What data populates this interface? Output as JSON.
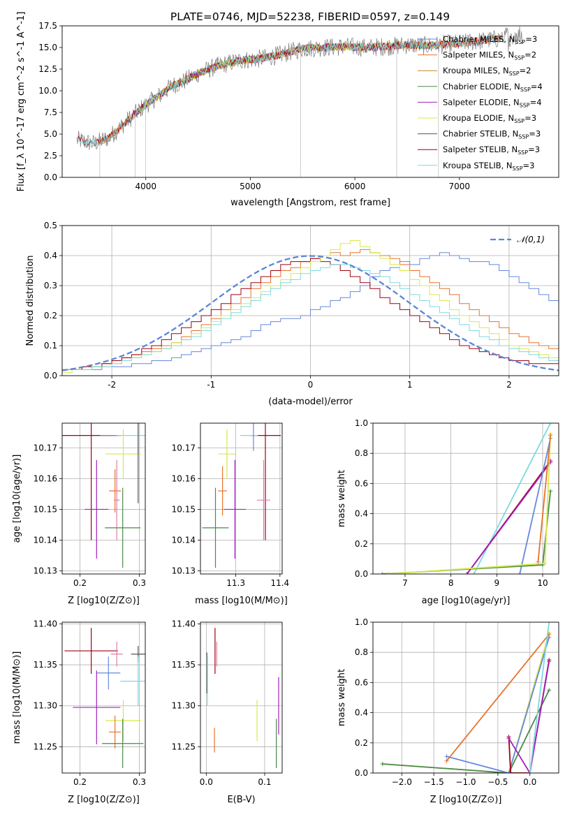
{
  "figure": {
    "title": "PLATE=0746, MJD=52238, FIBERID=0597, z=0.149"
  },
  "colors": {
    "Chabrier MILES": "#6688dd",
    "Salpeter MILES": "#e8732a",
    "Kroupa MILES": "#c8861e",
    "Chabrier ELODIE": "#4a8a4a",
    "Salpeter ELODIE": "#a020c0",
    "Kroupa ELODIE": "#d8e84a",
    "Chabrier STELIB": "#555555",
    "Salpeter STELIB": "#a00010",
    "Kroupa STELIB": "#7fd8e0",
    "Salpeter ELODIE pink": "#e07fa0",
    "gaussian": "#5b86d6"
  },
  "chart_data": [
    {
      "id": "spectrum",
      "type": "line",
      "title": "PLATE=0746, MJD=52238, FIBERID=0597, z=0.149",
      "xlabel": "wavelength [Angstrom, rest frame]",
      "ylabel": "Flux [f_λ 10^-17 erg cm^-2 s^-1 A^-1]",
      "xlim": [
        3200,
        7950
      ],
      "ylim": [
        0,
        17.5
      ],
      "xticks": [
        4000,
        5000,
        6000,
        7000
      ],
      "yticks": [
        0.0,
        2.5,
        5.0,
        7.5,
        10.0,
        12.5,
        15.0,
        17.5
      ],
      "legend_position": "right",
      "legend": [
        {
          "label": "Chabrier MILES",
          "nssp": "3"
        },
        {
          "label": "Salpeter MILES",
          "nssp": "2"
        },
        {
          "label": "Kroupa MILES",
          "nssp": "2"
        },
        {
          "label": "Chabrier ELODIE",
          "nssp": "4"
        },
        {
          "label": "Salpeter ELODIE",
          "nssp": "4"
        },
        {
          "label": "Kroupa ELODIE",
          "nssp": "3"
        },
        {
          "label": "Chabrier STELIB",
          "nssp": "3"
        },
        {
          "label": "Salpeter STELIB",
          "nssp": "3"
        },
        {
          "label": "Kroupa STELIB",
          "nssp": "3"
        }
      ],
      "continuum": {
        "x": [
          3350,
          3500,
          3650,
          3800,
          3950,
          4050,
          4150,
          4250,
          4350,
          4500,
          4700,
          4900,
          5100,
          5300,
          5500,
          5700,
          5900,
          6100,
          6300,
          6500,
          6700,
          6900,
          7100,
          7300,
          7500,
          7600
        ],
        "y": [
          4.3,
          3.9,
          4.6,
          6.3,
          7.9,
          8.8,
          9.6,
          10.6,
          11.0,
          12.0,
          12.9,
          13.5,
          13.7,
          14.2,
          14.9,
          15.0,
          15.1,
          15.0,
          15.1,
          15.3,
          15.2,
          15.4,
          15.6,
          15.9,
          16.2,
          16.5
        ]
      }
    },
    {
      "id": "residuals",
      "type": "step",
      "xlabel": "(data-model)/error",
      "ylabel": "Normed distribution",
      "xlim": [
        -2.5,
        2.5
      ],
      "ylim": [
        0,
        0.5
      ],
      "xticks": [
        -2,
        -1,
        0,
        1,
        2
      ],
      "yticks": [
        0.0,
        0.1,
        0.2,
        0.3,
        0.4,
        0.5
      ],
      "legend": [
        {
          "label": "𝒩(0,1)"
        }
      ],
      "legend_position": "top-right",
      "bin_edges_start": -2.5,
      "bin_width": 0.1,
      "series": [
        {
          "color": "Chabrier MILES",
          "values": [
            0.02,
            0.02,
            0.02,
            0.02,
            0.03,
            0.03,
            0.03,
            0.04,
            0.04,
            0.05,
            0.05,
            0.06,
            0.07,
            0.08,
            0.09,
            0.1,
            0.11,
            0.12,
            0.13,
            0.15,
            0.17,
            0.18,
            0.19,
            0.19,
            0.2,
            0.22,
            0.23,
            0.25,
            0.26,
            0.28,
            0.3,
            0.33,
            0.35,
            0.36,
            0.38,
            0.37,
            0.39,
            0.4,
            0.41,
            0.4,
            0.39,
            0.38,
            0.38,
            0.37,
            0.35,
            0.33,
            0.31,
            0.29,
            0.27,
            0.25
          ]
        },
        {
          "color": "Salpeter MILES",
          "values": [
            0.02,
            0.02,
            0.03,
            0.03,
            0.04,
            0.05,
            0.06,
            0.07,
            0.08,
            0.09,
            0.1,
            0.11,
            0.13,
            0.15,
            0.17,
            0.19,
            0.22,
            0.24,
            0.26,
            0.29,
            0.31,
            0.33,
            0.35,
            0.36,
            0.38,
            0.39,
            0.4,
            0.41,
            0.4,
            0.41,
            0.42,
            0.41,
            0.4,
            0.39,
            0.37,
            0.35,
            0.33,
            0.31,
            0.29,
            0.27,
            0.24,
            0.22,
            0.2,
            0.18,
            0.16,
            0.14,
            0.13,
            0.11,
            0.1,
            0.09
          ]
        },
        {
          "color": "Salpeter STELIB",
          "values": [
            0.02,
            0.02,
            0.03,
            0.03,
            0.04,
            0.05,
            0.06,
            0.07,
            0.09,
            0.1,
            0.12,
            0.14,
            0.16,
            0.18,
            0.2,
            0.22,
            0.24,
            0.27,
            0.29,
            0.31,
            0.33,
            0.35,
            0.37,
            0.38,
            0.38,
            0.39,
            0.38,
            0.37,
            0.35,
            0.33,
            0.31,
            0.29,
            0.26,
            0.24,
            0.22,
            0.2,
            0.18,
            0.16,
            0.14,
            0.12,
            0.1,
            0.09,
            0.08,
            0.07,
            0.06,
            0.05,
            0.05,
            0.04,
            0.04,
            0.04
          ]
        },
        {
          "color": "Kroupa ELODIE",
          "values": [
            0.01,
            0.02,
            0.02,
            0.03,
            0.03,
            0.04,
            0.05,
            0.06,
            0.07,
            0.08,
            0.09,
            0.11,
            0.12,
            0.14,
            0.16,
            0.18,
            0.2,
            0.22,
            0.24,
            0.26,
            0.28,
            0.3,
            0.32,
            0.34,
            0.36,
            0.38,
            0.4,
            0.42,
            0.44,
            0.45,
            0.43,
            0.41,
            0.39,
            0.37,
            0.35,
            0.32,
            0.3,
            0.27,
            0.25,
            0.22,
            0.2,
            0.18,
            0.16,
            0.14,
            0.12,
            0.1,
            0.09,
            0.08,
            0.07,
            0.06
          ]
        },
        {
          "color": "Kroupa STELIB",
          "values": [
            0.02,
            0.02,
            0.02,
            0.03,
            0.03,
            0.04,
            0.05,
            0.06,
            0.07,
            0.08,
            0.09,
            0.1,
            0.12,
            0.13,
            0.15,
            0.17,
            0.19,
            0.21,
            0.23,
            0.25,
            0.27,
            0.29,
            0.31,
            0.32,
            0.34,
            0.35,
            0.36,
            0.37,
            0.37,
            0.36,
            0.35,
            0.34,
            0.33,
            0.31,
            0.29,
            0.27,
            0.25,
            0.23,
            0.21,
            0.19,
            0.17,
            0.15,
            0.13,
            0.12,
            0.1,
            0.09,
            0.08,
            0.07,
            0.06,
            0.05
          ]
        }
      ]
    },
    {
      "id": "age_vs_Z",
      "type": "errorbar",
      "xlabel": "Z [log10(Z/Z⊙)]",
      "ylabel": "age [log10(age/yr)]",
      "xlim": [
        0.17,
        0.31
      ],
      "ylim": [
        10.129,
        10.178
      ],
      "xticks": [
        "0.2",
        "0.3"
      ],
      "yticks": [
        "10.13",
        "10.14",
        "10.15",
        "10.16",
        "10.17"
      ],
      "points": [
        {
          "color": "Salpeter STELIB",
          "x": 0.219,
          "y": 10.174,
          "xerr": 0.05,
          "yerr": 0.034
        },
        {
          "color": "Kroupa STELIB",
          "x": 0.298,
          "y": 10.174,
          "xerr": 0.04,
          "yerr": 0.006
        },
        {
          "color": "Chabrier MILES",
          "x": 0.248,
          "y": 10.174,
          "xerr": 0.0,
          "yerr": 0.0
        },
        {
          "color": "Kroupa ELODIE",
          "x": 0.273,
          "y": 10.168,
          "xerr": 0.03,
          "yerr": 0.008
        },
        {
          "color": "Salpeter MILES",
          "x": 0.259,
          "y": 10.156,
          "xerr": 0.01,
          "yerr": 0.007
        },
        {
          "color": "Salpeter ELODIE pink",
          "x": 0.262,
          "y": 10.153,
          "xerr": 0.005,
          "yerr": 0.013
        },
        {
          "color": "Salpeter ELODIE",
          "x": 0.228,
          "y": 10.15,
          "xerr": 0.02,
          "yerr": 0.016
        },
        {
          "color": "Chabrier ELODIE",
          "x": 0.272,
          "y": 10.144,
          "xerr": 0.03,
          "yerr": 0.013
        },
        {
          "color": "Chabrier STELIB",
          "x": 0.298,
          "y": 10.17,
          "xerr": 0.0,
          "yerr": 0.018
        }
      ]
    },
    {
      "id": "age_vs_mass",
      "type": "errorbar",
      "xlabel": "mass [log10(M/M⊙)]",
      "ylabel": "",
      "xlim": [
        11.22,
        11.405
      ],
      "ylim": [
        10.129,
        10.178
      ],
      "xticks": [
        "11.3",
        "11.4"
      ],
      "yticks": [
        "10.13",
        "10.14",
        "10.15",
        "10.16",
        "10.17"
      ],
      "points": [
        {
          "color": "Salpeter STELIB",
          "x": 11.367,
          "y": 10.174,
          "xerr": 0.035,
          "yerr": 0.034
        },
        {
          "color": "Kroupa STELIB",
          "x": 11.33,
          "y": 10.174,
          "xerr": 0.02,
          "yerr": 0.0
        },
        {
          "color": "Chabrier MILES",
          "x": 11.34,
          "y": 10.174,
          "xerr": 0.0,
          "yerr": 0.005
        },
        {
          "color": "Kroupa ELODIE",
          "x": 11.28,
          "y": 10.168,
          "xerr": 0.02,
          "yerr": 0.008
        },
        {
          "color": "Salpeter MILES",
          "x": 11.27,
          "y": 10.156,
          "xerr": 0.01,
          "yerr": 0.008
        },
        {
          "color": "Salpeter ELODIE pink",
          "x": 11.363,
          "y": 10.153,
          "xerr": 0.015,
          "yerr": 0.013
        },
        {
          "color": "Salpeter ELODIE",
          "x": 11.298,
          "y": 10.15,
          "xerr": 0.025,
          "yerr": 0.016
        },
        {
          "color": "Chabrier ELODIE",
          "x": 11.254,
          "y": 10.144,
          "xerr": 0.03,
          "yerr": 0.013
        }
      ]
    },
    {
      "id": "mass_weight_vs_age",
      "type": "line",
      "xlabel": "age [log10(age/yr)]",
      "ylabel": "mass weight",
      "xlim": [
        6.3,
        10.35
      ],
      "ylim": [
        0,
        1
      ],
      "xticks": [
        7,
        8,
        9,
        10
      ],
      "yticks": [
        "0.0",
        "0.2",
        "0.4",
        "0.6",
        "0.8",
        "1.0"
      ],
      "series": [
        {
          "color": "Kroupa STELIB",
          "x": [
            8.5,
            10.17
          ],
          "y": [
            0.0,
            1.0
          ]
        },
        {
          "color": "Salpeter STELIB",
          "x": [
            8.35,
            10.17
          ],
          "y": [
            0.0,
            0.75
          ]
        },
        {
          "color": "Salpeter ELODIE",
          "x": [
            8.35,
            10.17
          ],
          "y": [
            0.0,
            0.74
          ]
        },
        {
          "color": "Chabrier MILES",
          "x": [
            9.5,
            10.17
          ],
          "y": [
            0.0,
            0.9
          ]
        },
        {
          "color": "Chabrier ELODIE",
          "x": [
            6.5,
            10.0,
            10.17
          ],
          "y": [
            0.0,
            0.06,
            0.55
          ]
        },
        {
          "color": "Kroupa ELODIE",
          "x": [
            6.6,
            10.05,
            10.17
          ],
          "y": [
            0.0,
            0.07,
            0.93
          ]
        },
        {
          "color": "Salpeter MILES",
          "x": [
            9.9,
            10.17
          ],
          "y": [
            0.08,
            0.92
          ]
        }
      ]
    },
    {
      "id": "mass_vs_Z",
      "type": "errorbar",
      "xlabel": "Z [log10(Z/Z⊙)]",
      "ylabel": "mass [log10(M/M⊙)]",
      "xlim": [
        0.17,
        0.31
      ],
      "ylim": [
        11.218,
        11.402
      ],
      "xticks": [
        "0.2",
        "0.3"
      ],
      "yticks": [
        "11.25",
        "11.30",
        "11.35",
        "11.40"
      ],
      "points": [
        {
          "color": "Salpeter STELIB",
          "x": 0.219,
          "y": 11.367,
          "xerr": 0.045,
          "yerr": 0.028
        },
        {
          "color": "Salpeter ELODIE pink",
          "x": 0.262,
          "y": 11.363,
          "xerr": 0.01,
          "yerr": 0.015
        },
        {
          "color": "Chabrier STELIB",
          "x": 0.298,
          "y": 11.363,
          "xerr": 0.012,
          "yerr": 0.01
        },
        {
          "color": "Chabrier MILES",
          "x": 0.248,
          "y": 11.34,
          "xerr": 0.02,
          "yerr": 0.02
        },
        {
          "color": "Kroupa STELIB",
          "x": 0.298,
          "y": 11.33,
          "xerr": 0.03,
          "yerr": 0.03
        },
        {
          "color": "Salpeter ELODIE",
          "x": 0.228,
          "y": 11.298,
          "xerr": 0.04,
          "yerr": 0.045
        },
        {
          "color": "Kroupa ELODIE",
          "x": 0.273,
          "y": 11.282,
          "xerr": 0.03,
          "yerr": 0.025
        },
        {
          "color": "Salpeter MILES",
          "x": 0.259,
          "y": 11.268,
          "xerr": 0.01,
          "yerr": 0.02
        },
        {
          "color": "Chabrier ELODIE",
          "x": 0.272,
          "y": 11.254,
          "xerr": 0.035,
          "yerr": 0.03
        }
      ]
    },
    {
      "id": "mass_vs_ebv",
      "type": "errorbar",
      "xlabel": "E(B-V)",
      "ylabel": "",
      "xlim": [
        -0.01,
        0.13
      ],
      "ylim": [
        11.218,
        11.402
      ],
      "xticks": [
        "0.0",
        "0.1"
      ],
      "yticks": [
        "11.25",
        "11.30",
        "11.35",
        "11.40"
      ],
      "points": [
        {
          "color": "Salpeter STELIB",
          "x": 0.015,
          "y": 11.367,
          "xerr": 0.0,
          "yerr": 0.028
        },
        {
          "color": "Salpeter ELODIE pink",
          "x": 0.018,
          "y": 11.363,
          "xerr": 0.0,
          "yerr": 0.015
        },
        {
          "color": "Chabrier STELIB",
          "x": 0.001,
          "y": 11.34,
          "xerr": 0.0,
          "yerr": 0.025
        },
        {
          "color": "Kroupa STELIB",
          "x": 0.002,
          "y": 11.33,
          "xerr": 0.0,
          "yerr": 0.03
        },
        {
          "color": "Kroupa ELODIE",
          "x": 0.087,
          "y": 11.282,
          "xerr": 0.0,
          "yerr": 0.025
        },
        {
          "color": "Salpeter MILES",
          "x": 0.014,
          "y": 11.258,
          "xerr": 0.0,
          "yerr": 0.015
        },
        {
          "color": "Chabrier ELODIE",
          "x": 0.12,
          "y": 11.254,
          "xerr": 0.0,
          "yerr": 0.03
        },
        {
          "color": "Salpeter ELODIE",
          "x": 0.124,
          "y": 11.3,
          "xerr": 0.0,
          "yerr": 0.035
        }
      ]
    },
    {
      "id": "mass_weight_vs_Z",
      "type": "line",
      "xlabel": "Z [log10(Z/Z⊙)]",
      "ylabel": "mass weight",
      "xlim": [
        -2.45,
        0.45
      ],
      "ylim": [
        0,
        1
      ],
      "xticks": [
        "−2.0",
        "−1.5",
        "−1.0",
        "−0.5",
        "0.0"
      ],
      "yticks": [
        "0.0",
        "0.2",
        "0.4",
        "0.6",
        "0.8",
        "1.0"
      ],
      "series": [
        {
          "color": "Kroupa ELODIE",
          "x": [
            -2.3,
            -0.33,
            0.3
          ],
          "y": [
            0.06,
            0.0,
            0.93
          ]
        },
        {
          "color": "Chabrier ELODIE",
          "x": [
            -2.3,
            -0.33,
            0.3
          ],
          "y": [
            0.06,
            0.0,
            0.55
          ]
        },
        {
          "color": "Salpeter MILES",
          "x": [
            -1.3,
            0.3
          ],
          "y": [
            0.08,
            0.92
          ]
        },
        {
          "color": "Chabrier MILES",
          "x": [
            -1.3,
            -0.33,
            0.3
          ],
          "y": [
            0.11,
            0.0,
            0.9
          ]
        },
        {
          "color": "Salpeter STELIB",
          "x": [
            -0.33,
            -0.3,
            0.0,
            0.3
          ],
          "y": [
            0.24,
            0.0,
            0.0,
            0.75
          ]
        },
        {
          "color": "Salpeter ELODIE",
          "x": [
            -0.33,
            0.0,
            0.3
          ],
          "y": [
            0.23,
            0.0,
            0.74
          ]
        },
        {
          "color": "Kroupa STELIB",
          "x": [
            0.0,
            0.3
          ],
          "y": [
            0.0,
            1.0
          ]
        }
      ]
    }
  ]
}
